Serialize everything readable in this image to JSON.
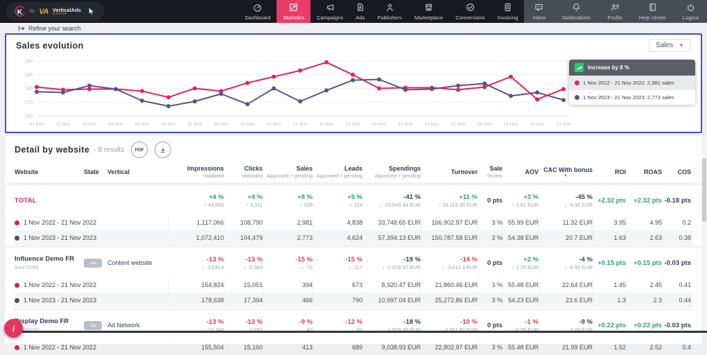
{
  "nav": {
    "brand": {
      "k": "K",
      "by": "by",
      "va": "VA",
      "name": "VerticalAds",
      "sub": "GROUP"
    },
    "items": [
      {
        "label": "Dashboard",
        "icon": "dashboard",
        "active": false
      },
      {
        "label": "Statistics",
        "icon": "statistics",
        "active": true
      },
      {
        "label": "Campaigns",
        "icon": "campaigns",
        "active": false
      },
      {
        "label": "Ads",
        "icon": "ads",
        "active": false
      },
      {
        "label": "Publishers",
        "icon": "publishers",
        "active": false
      },
      {
        "label": "Marketplace",
        "icon": "marketplace",
        "active": false
      },
      {
        "label": "Conversions",
        "icon": "conversions",
        "active": false
      },
      {
        "label": "Invoicing",
        "icon": "invoicing",
        "active": false
      }
    ],
    "right_items": [
      {
        "label": "Inbox",
        "icon": "inbox"
      },
      {
        "label": "Notifications",
        "icon": "notifications"
      },
      {
        "label": "Profile",
        "icon": "profile"
      },
      {
        "label": "Help center",
        "icon": "help"
      },
      {
        "label": "Logout",
        "icon": "logout"
      }
    ]
  },
  "refine": {
    "label": "Refine your search"
  },
  "sales_card": {
    "title": "Sales evolution",
    "metric_select": "Sales",
    "legend": {
      "header": "Increase by 8 %",
      "rows": [
        {
          "color": "#e2225b",
          "label": "1 Nov 2022 - 21 Nov 2022: 2,981 sales"
        },
        {
          "color": "#57538c",
          "label": "1 Nov 2023 - 21 Nov 2023: 2,773 sales"
        }
      ]
    }
  },
  "chart_data": {
    "type": "line",
    "title": "Sales evolution",
    "xlabel": "",
    "ylabel": "",
    "x": [
      "01 Nov",
      "02 Nov",
      "03 Nov",
      "04 Nov",
      "05 Nov",
      "06 Nov",
      "07 Nov",
      "08 Nov",
      "09 Nov",
      "10 Nov",
      "11 Nov",
      "12 Nov",
      "13 Nov",
      "14 Nov",
      "15 Nov",
      "16 Nov",
      "17 Nov",
      "18 Nov",
      "19 Nov",
      "20 Nov",
      "21 Nov"
    ],
    "ylim": [
      100,
      185
    ],
    "yticks": [
      100,
      120,
      140,
      160,
      180
    ],
    "grid": true,
    "legend_position": "right-overlay",
    "series": [
      {
        "name": "1 Nov 2022 - 21 Nov 2022",
        "total": "2,981 sales",
        "color": "#e2225b",
        "values": [
          142,
          138,
          139,
          139,
          136,
          127,
          140,
          136,
          148,
          157,
          166,
          178,
          160,
          140,
          141,
          141,
          138,
          142,
          157,
          124,
          139
        ]
      },
      {
        "name": "1 Nov 2023 - 21 Nov 2023",
        "total": "2,773 sales",
        "color": "#57538c",
        "values": [
          135,
          134,
          144,
          139,
          122,
          114,
          121,
          132,
          117,
          140,
          121,
          137,
          152,
          153,
          138,
          139,
          144,
          147,
          129,
          134,
          123
        ]
      }
    ]
  },
  "table": {
    "title": "Detail by website",
    "results": "- 8 results",
    "pdf_label": "PDF",
    "columns": [
      {
        "label": "Website",
        "sub": "",
        "align": "left"
      },
      {
        "label": "State",
        "sub": "",
        "align": "left"
      },
      {
        "label": "Vertical",
        "sub": "",
        "align": "left"
      },
      {
        "label": "Impressions",
        "sub": "Validated",
        "align": "right"
      },
      {
        "label": "Clicks",
        "sub": "Validated",
        "align": "right"
      },
      {
        "label": "Sales",
        "sub": "Approved + pending",
        "align": "right"
      },
      {
        "label": "Leads",
        "sub": "Approved + pending",
        "align": "right"
      },
      {
        "label": "Spendings",
        "sub": "Approved + pending",
        "align": "right"
      },
      {
        "label": "Turnover",
        "sub": "",
        "align": "right"
      },
      {
        "label": "Sale",
        "sub": "%conv",
        "align": "right"
      },
      {
        "label": "AOV",
        "sub": "",
        "align": "right"
      },
      {
        "label": "CAC With bonus",
        "sub": "",
        "align": "right",
        "sorted": true
      },
      {
        "label": "ROI",
        "sub": "",
        "align": "right"
      },
      {
        "label": "ROAS",
        "sub": "",
        "align": "right"
      },
      {
        "label": "COS",
        "sub": "",
        "align": "right"
      }
    ],
    "groups": [
      {
        "name": "TOTAL",
        "is_total": true,
        "id": "",
        "state": false,
        "vertical": "",
        "sep": "band",
        "changes": [
          {
            "pct": "+4 %",
            "delta": "↑ 44,656",
            "tone": "green"
          },
          {
            "pct": "+4 %",
            "delta": "↑ 4,311",
            "tone": "green"
          },
          {
            "pct": "+8 %",
            "delta": "↑ 208",
            "tone": "green"
          },
          {
            "pct": "+5 %",
            "delta": "↑ 214",
            "tone": "green"
          },
          {
            "pct": "-41 %",
            "delta": "↓ -23,645.48 EUR",
            "tone": "dark"
          },
          {
            "pct": "+11 %",
            "delta": "↑ 16,115.39 EUR",
            "tone": "green"
          },
          {
            "pct": "0 pts",
            "delta": "",
            "tone": "dark"
          },
          {
            "pct": "+3 %",
            "delta": "↑ 1.61 EUR",
            "tone": "green"
          },
          {
            "pct": "-45 %",
            "delta": "↓ -9.38 EUR",
            "tone": "dark"
          },
          {
            "pct": "+2.32 pts",
            "delta": "",
            "tone": "green"
          },
          {
            "pct": "+2.32 pts",
            "delta": "",
            "tone": "green"
          },
          {
            "pct": "-0.18 pts",
            "delta": "",
            "tone": "dark"
          }
        ],
        "rows": [
          {
            "dot": "#d91a57",
            "label": "1 Nov 2022 - 21 Nov 2022",
            "values": [
              "1,117,066",
              "108,790",
              "2,981",
              "4,838",
              "33,748.65 EUR",
              "166,902.97 EUR",
              "3 %",
              "55.99 EUR",
              "11.32 EUR",
              "3.95",
              "4.95",
              "0.2"
            ]
          },
          {
            "dot": "#4d4879",
            "label": "1 Nov 2023 - 21 Nov 2023",
            "values": [
              "1,072,410",
              "104,479",
              "2,773",
              "4,624",
              "57,394.13 EUR",
              "150,787.58 EUR",
              "3 %",
              "54.38 EUR",
              "20.7 EUR",
              "1.63",
              "2.63",
              "0.38"
            ]
          }
        ]
      },
      {
        "name": "Influence Demo FR",
        "is_total": false,
        "id": "SA471089",
        "state": true,
        "vertical": "Content website",
        "sep": "band",
        "changes": [
          {
            "pct": "-13 %",
            "delta": "↓ -23,814",
            "tone": "red"
          },
          {
            "pct": "-13 %",
            "delta": "↓ -2,343",
            "tone": "red"
          },
          {
            "pct": "-15 %",
            "delta": "↓ -72",
            "tone": "red"
          },
          {
            "pct": "-15 %",
            "delta": "↓ -117",
            "tone": "red"
          },
          {
            "pct": "-19 %",
            "delta": "↓ -2,076.57 EUR",
            "tone": "dark"
          },
          {
            "pct": "-14 %",
            "delta": "↓ -3,412.4 EUR",
            "tone": "red"
          },
          {
            "pct": "0 pts",
            "delta": "",
            "tone": "dark"
          },
          {
            "pct": "+2 %",
            "delta": "↑ 1.25 EUR",
            "tone": "green"
          },
          {
            "pct": "-4 %",
            "delta": "↓ -0.96 EUR",
            "tone": "dark"
          },
          {
            "pct": "+0.15 pts",
            "delta": "",
            "tone": "green"
          },
          {
            "pct": "+0.15 pts",
            "delta": "",
            "tone": "green"
          },
          {
            "pct": "-0.03 pts",
            "delta": "",
            "tone": "dark"
          }
        ],
        "rows": [
          {
            "dot": "#d91a57",
            "label": "1 Nov 2022 - 21 Nov 2022",
            "values": [
              "154,824",
              "15,051",
              "394",
              "673",
              "8,920.47 EUR",
              "21,860.46 EUR",
              "3 %",
              "55.48 EUR",
              "22.64 EUR",
              "1.45",
              "2.45",
              "0.41"
            ]
          },
          {
            "dot": "#4d4879",
            "label": "1 Nov 2023 - 21 Nov 2023",
            "values": [
              "178,638",
              "17,394",
              "466",
              "790",
              "10,997.04 EUR",
              "25,272.86 EUR",
              "3 %",
              "54.23 EUR",
              "23.6 EUR",
              "1.3",
              "2.3",
              "0.44"
            ]
          }
        ]
      },
      {
        "name": "Display Demo FR",
        "is_total": false,
        "id": "SA469737",
        "state": true,
        "vertical": "Ad Network",
        "sep": "dotted",
        "changes": [
          {
            "pct": "-13 %",
            "delta": "↓ -23,344",
            "tone": "red"
          },
          {
            "pct": "-13 %",
            "delta": "↓ -2,263",
            "tone": "red"
          },
          {
            "pct": "-9 %",
            "delta": "↓ -43",
            "tone": "red"
          },
          {
            "pct": "-12 %",
            "delta": "↓ -93",
            "tone": "red"
          },
          {
            "pct": "-18 %",
            "delta": "↓ -1,978.99 EUR",
            "tone": "dark"
          },
          {
            "pct": "-10 %",
            "delta": "↓ -2,561.82 EUR",
            "tone": "red"
          },
          {
            "pct": "0 pts",
            "delta": "",
            "tone": "dark"
          },
          {
            "pct": "-1 %",
            "delta": "↓ -0.39 EUR",
            "tone": "red"
          },
          {
            "pct": "-9 %",
            "delta": "↓ -2.28 EUR",
            "tone": "dark"
          },
          {
            "pct": "+0.22 pts",
            "delta": "",
            "tone": "green"
          },
          {
            "pct": "+0.22 pts",
            "delta": "",
            "tone": "green"
          },
          {
            "pct": "-0.03 pts",
            "delta": "",
            "tone": "dark"
          }
        ],
        "rows": [
          {
            "dot": "#d91a57",
            "label": "1 Nov 2022 - 21 Nov 2022",
            "values": [
              "155,504",
              "15,160",
              "413",
              "689",
              "9,038.93 EUR",
              "22,802.97 EUR",
              "3 %",
              "55.48 EUR",
              "21.99 EUR",
              "1.52",
              "2.52",
              "0.4"
            ]
          }
        ]
      }
    ]
  },
  "misc": {
    "info_badge": "i"
  },
  "colors": {
    "accent_pink": "#e73d68",
    "chart_2022": "#e2225b",
    "chart_2023": "#57538c",
    "positive": "#27a567",
    "negative": "#db3d58",
    "selection_border": "#3c4ed8"
  }
}
